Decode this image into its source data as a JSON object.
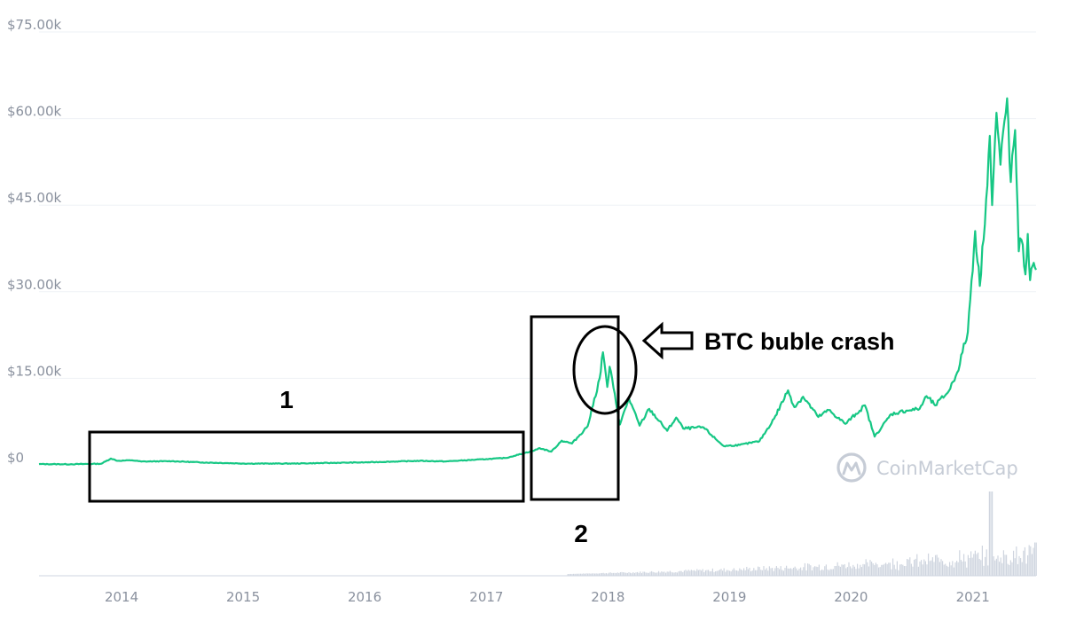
{
  "chart_data": {
    "type": "line",
    "title": "",
    "xlabel": "",
    "ylabel": "",
    "ylim": [
      0,
      75000
    ],
    "xlim": [
      "2013-04-28",
      "2021-07-10"
    ],
    "grid": "horizontal",
    "y_ticks": [
      {
        "value": 0,
        "label": "$0"
      },
      {
        "value": 15000,
        "label": "$15.00k"
      },
      {
        "value": 30000,
        "label": "$30.00k"
      },
      {
        "value": 45000,
        "label": "$45.00k"
      },
      {
        "value": 60000,
        "label": "$60.00k"
      },
      {
        "value": 75000,
        "label": "$75.00k"
      }
    ],
    "x_ticks": [
      {
        "date": "2014-01-01",
        "label": "2014"
      },
      {
        "date": "2015-01-01",
        "label": "2015"
      },
      {
        "date": "2016-01-01",
        "label": "2016"
      },
      {
        "date": "2017-01-01",
        "label": "2017"
      },
      {
        "date": "2018-01-01",
        "label": "2018"
      },
      {
        "date": "2019-01-01",
        "label": "2019"
      },
      {
        "date": "2020-01-01",
        "label": "2020"
      },
      {
        "date": "2021-01-01",
        "label": "2021"
      }
    ],
    "series": [
      {
        "color": "#16c784",
        "points": [
          [
            "2013-04-28",
            135
          ],
          [
            "2013-08-01",
            110
          ],
          [
            "2013-11-01",
            200
          ],
          [
            "2013-11-30",
            1100
          ],
          [
            "2013-12-20",
            700
          ],
          [
            "2014-02-01",
            800
          ],
          [
            "2014-03-01",
            580
          ],
          [
            "2014-06-01",
            640
          ],
          [
            "2014-09-01",
            420
          ],
          [
            "2015-01-15",
            220
          ],
          [
            "2015-06-01",
            230
          ],
          [
            "2015-11-05",
            380
          ],
          [
            "2016-01-01",
            430
          ],
          [
            "2016-06-15",
            700
          ],
          [
            "2016-09-01",
            600
          ],
          [
            "2017-01-01",
            1000
          ],
          [
            "2017-03-01",
            1200
          ],
          [
            "2017-05-25",
            2500
          ],
          [
            "2017-06-10",
            2900
          ],
          [
            "2017-07-15",
            2300
          ],
          [
            "2017-08-15",
            4200
          ],
          [
            "2017-09-15",
            3700
          ],
          [
            "2017-11-01",
            6700
          ],
          [
            "2017-12-07",
            15000
          ],
          [
            "2017-12-17",
            19500
          ],
          [
            "2017-12-30",
            13500
          ],
          [
            "2018-01-06",
            17000
          ],
          [
            "2018-02-06",
            7000
          ],
          [
            "2018-03-05",
            11500
          ],
          [
            "2018-04-06",
            6800
          ],
          [
            "2018-05-05",
            9700
          ],
          [
            "2018-06-28",
            5900
          ],
          [
            "2018-07-25",
            8200
          ],
          [
            "2018-08-15",
            6300
          ],
          [
            "2018-10-15",
            6500
          ],
          [
            "2018-11-20",
            4500
          ],
          [
            "2018-12-15",
            3250
          ],
          [
            "2019-02-01",
            3450
          ],
          [
            "2019-04-01",
            4100
          ],
          [
            "2019-05-15",
            8000
          ],
          [
            "2019-06-26",
            12900
          ],
          [
            "2019-07-15",
            10000
          ],
          [
            "2019-08-10",
            11800
          ],
          [
            "2019-09-25",
            8300
          ],
          [
            "2019-10-26",
            9500
          ],
          [
            "2019-12-15",
            7100
          ],
          [
            "2020-02-12",
            10300
          ],
          [
            "2020-03-12",
            4900
          ],
          [
            "2020-05-01",
            8800
          ],
          [
            "2020-06-15",
            9400
          ],
          [
            "2020-07-25",
            9700
          ],
          [
            "2020-08-15",
            11900
          ],
          [
            "2020-09-10",
            10300
          ],
          [
            "2020-10-21",
            12800
          ],
          [
            "2020-11-15",
            16000
          ],
          [
            "2020-12-17",
            23000
          ],
          [
            "2021-01-08",
            40500
          ],
          [
            "2021-01-22",
            31000
          ],
          [
            "2021-02-10",
            46000
          ],
          [
            "2021-02-21",
            57000
          ],
          [
            "2021-02-28",
            45000
          ],
          [
            "2021-03-13",
            61000
          ],
          [
            "2021-03-25",
            52000
          ],
          [
            "2021-04-14",
            63500
          ],
          [
            "2021-04-25",
            49000
          ],
          [
            "2021-05-08",
            58000
          ],
          [
            "2021-05-19",
            37000
          ],
          [
            "2021-05-27",
            39000
          ],
          [
            "2021-06-08",
            33000
          ],
          [
            "2021-06-15",
            40000
          ],
          [
            "2021-06-22",
            32000
          ],
          [
            "2021-07-03",
            35000
          ],
          [
            "2021-07-10",
            33800
          ]
        ]
      }
    ],
    "volume_bars": true,
    "annotations": [
      {
        "type": "box",
        "label": "1"
      },
      {
        "type": "box",
        "label": "2"
      },
      {
        "type": "ellipse"
      },
      {
        "type": "arrow",
        "text": "BTC buble crash"
      }
    ],
    "watermark": "CoinMarketCap"
  }
}
